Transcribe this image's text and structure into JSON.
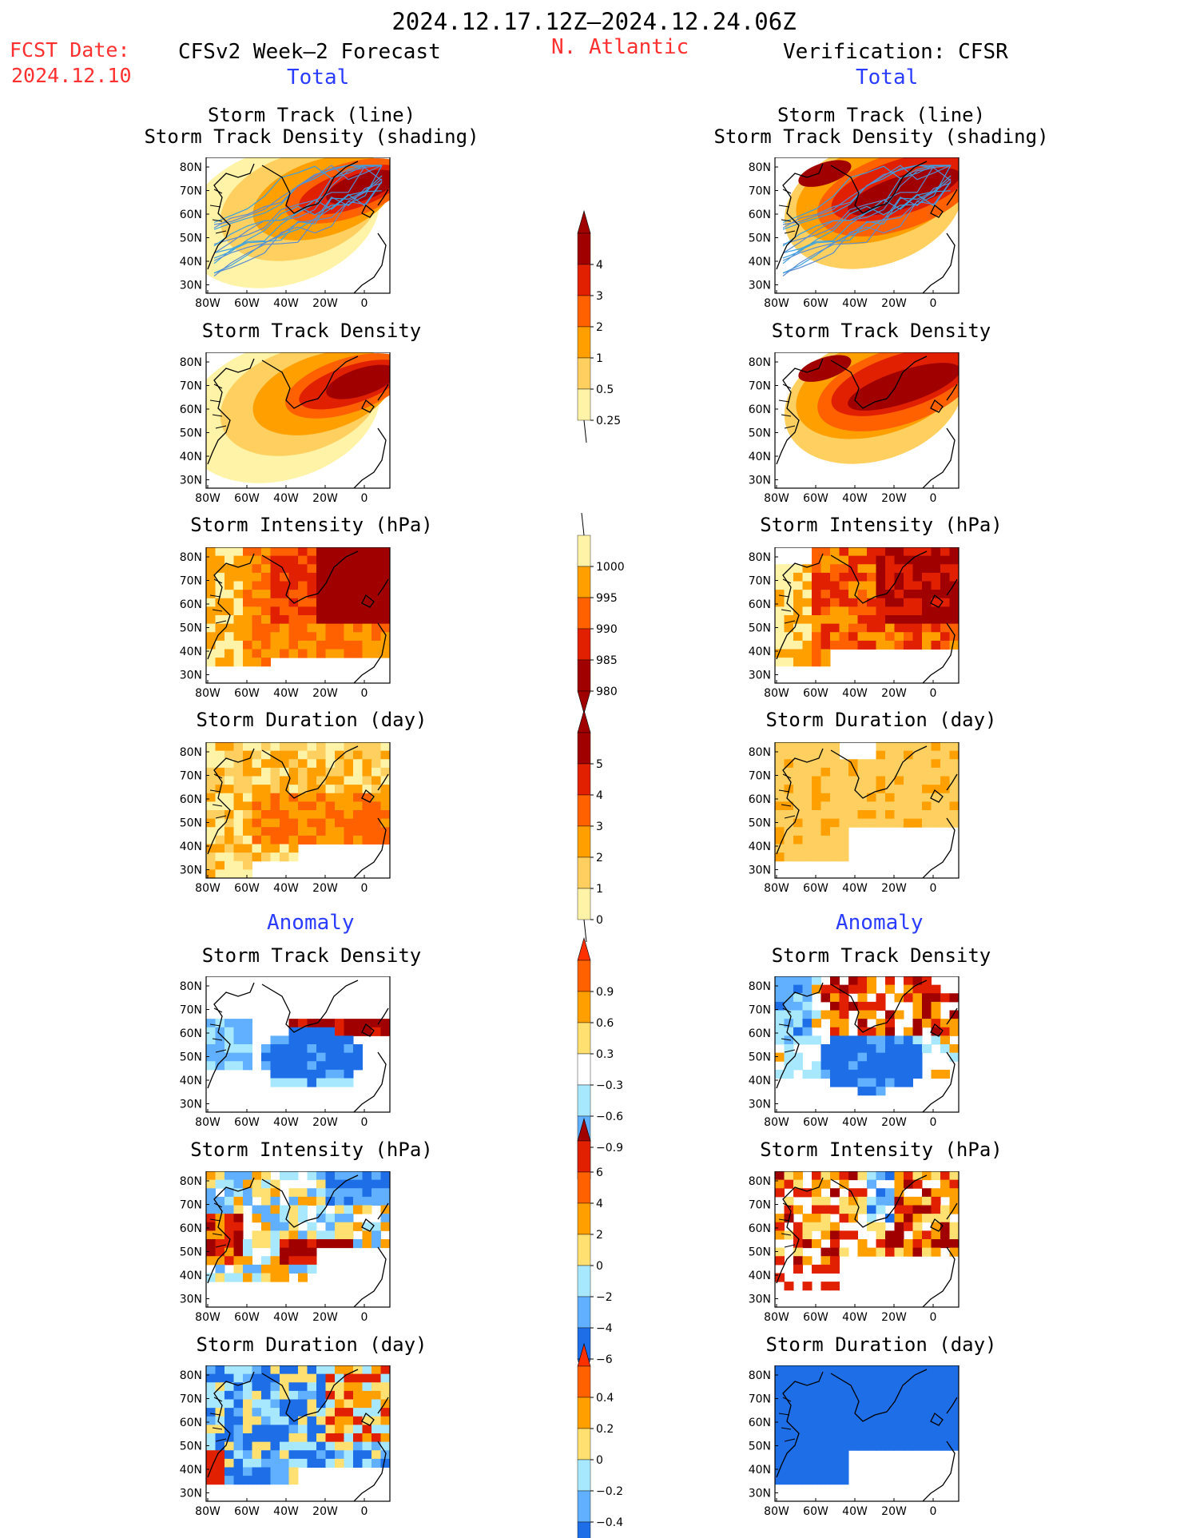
{
  "header": {
    "date_range": "2024.12.17.12Z–2024.12.24.06Z",
    "fcst_label": "FCST Date:",
    "fcst_date": "2024.12.10",
    "left_title": "CFSv2 Week–2 Forecast",
    "region": "N. Atlantic",
    "right_title": "Verification: CFSR",
    "total_label": "Total",
    "anomaly_label": "Anomaly"
  },
  "panel_titles": {
    "track_line": "Storm Track (line)",
    "track_density_shading": "Storm Track Density (shading)",
    "track_density": "Storm Track Density",
    "intensity": "Storm Intensity (hPa)",
    "duration": "Storm Duration (day)"
  },
  "axes": {
    "lat_ticks": [
      "80N",
      "70N",
      "60N",
      "50N",
      "40N",
      "30N"
    ],
    "lon_ticks": [
      "80W",
      "60W",
      "40W",
      "20W",
      "0"
    ]
  },
  "colorbars": [
    {
      "name": "density-total",
      "labels": [
        "4",
        "3",
        "2",
        "1",
        "0.5",
        "0.25"
      ],
      "colors": [
        "#a00000",
        "#e02000",
        "#ff6000",
        "#ffa000",
        "#ffd060",
        "#fff3a8"
      ],
      "top_arrow": "#a00000",
      "bottom": "open"
    },
    {
      "name": "intensity-total",
      "labels": [
        "1000",
        "995",
        "990",
        "985",
        "980"
      ],
      "colors": [
        "#fff3a8",
        "#ffa000",
        "#ff6000",
        "#e02000",
        "#a00000"
      ],
      "top_arrow": "open",
      "bottom": "#a00000"
    },
    {
      "name": "duration-total",
      "labels": [
        "5",
        "4",
        "3",
        "2",
        "1",
        "0"
      ],
      "colors": [
        "#a00000",
        "#e02000",
        "#ff6000",
        "#ffa000",
        "#ffd060",
        "#fff3a8"
      ],
      "top_arrow": "#a00000",
      "bottom": "open"
    },
    {
      "name": "density-anom",
      "labels": [
        "0.9",
        "0.6",
        "0.3",
        "−0.3",
        "−0.6",
        "−0.9"
      ],
      "colors": [
        "#ff6000",
        "#ffa000",
        "#ffe070",
        "#ffffff",
        "#a8e8ff",
        "#60b0ff",
        "#1e6ee8"
      ],
      "top_arrow": "#ff3000",
      "bottom": "#1e6ee8"
    },
    {
      "name": "intensity-anom",
      "labels": [
        "6",
        "4",
        "2",
        "0",
        "−2",
        "−4",
        "−6"
      ],
      "colors": [
        "#e02000",
        "#ff6000",
        "#ffa000",
        "#ffe070",
        "#a8e8ff",
        "#60b0ff",
        "#1e6ee8"
      ],
      "top_arrow": "#a00000",
      "bottom": "#1e6ee8"
    },
    {
      "name": "duration-anom",
      "labels": [
        "0.4",
        "0.2",
        "0",
        "−0.2",
        "−0.4"
      ],
      "colors": [
        "#ff6000",
        "#ffa000",
        "#ffe070",
        "#a8e8ff",
        "#60b0ff",
        "#1e6ee8"
      ],
      "top_arrow": "#ff3000",
      "bottom": "#1e6ee8"
    }
  ]
}
